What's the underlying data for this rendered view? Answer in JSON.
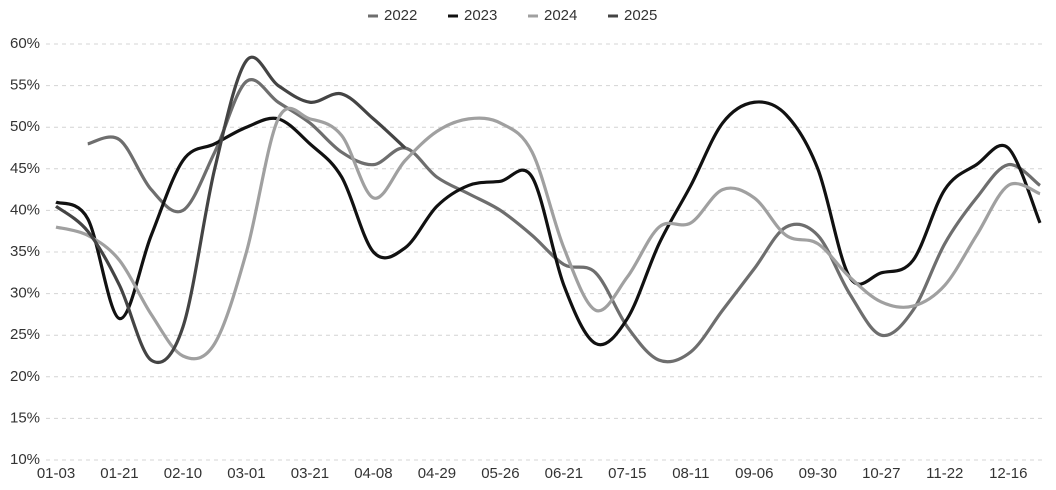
{
  "chart_data": {
    "type": "line",
    "categories": [
      "01-03",
      null,
      "01-21",
      null,
      "02-10",
      null,
      "03-01",
      null,
      "03-21",
      null,
      "04-08",
      null,
      "04-29",
      null,
      "05-26",
      null,
      "06-21",
      null,
      "07-15",
      null,
      "08-11",
      null,
      "09-06",
      null,
      "09-30",
      null,
      "10-27",
      null,
      "11-22",
      null,
      "12-16",
      null
    ],
    "series": [
      {
        "name": "2022",
        "color": "#6e6e6e",
        "values": [
          null,
          48,
          48.5,
          42.5,
          40,
          47,
          55.5,
          53,
          50.5,
          47,
          45.5,
          47.5,
          44,
          42,
          40,
          37,
          33.5,
          32.5,
          26,
          22,
          23,
          28,
          33,
          38,
          37,
          30,
          25,
          28,
          36,
          41.5,
          45.5,
          43
        ]
      },
      {
        "name": "2023",
        "color": "#111111",
        "values": [
          41,
          39,
          27,
          37,
          46,
          48,
          50,
          51,
          48,
          44,
          35,
          35.5,
          40.5,
          43,
          43.5,
          44,
          31,
          24,
          27,
          36,
          43,
          50.5,
          53,
          51.5,
          45,
          32,
          32.5,
          34,
          42.5,
          45.5,
          47.5,
          38.5
        ]
      },
      {
        "name": "2024",
        "color": "#a0a0a0",
        "values": [
          38,
          37,
          34,
          27.5,
          22.5,
          24,
          35,
          51,
          51,
          49,
          41.5,
          46,
          49.5,
          51,
          50.5,
          47,
          35.5,
          28,
          32,
          38,
          38.5,
          42.5,
          41.5,
          37,
          36,
          32,
          29,
          28.5,
          31,
          37,
          43,
          42
        ]
      },
      {
        "name": "2025",
        "color": "#444444",
        "values": [
          40.5,
          37.5,
          31,
          22,
          26,
          45,
          58,
          55,
          53,
          54,
          51,
          47.5,
          null,
          null,
          null,
          null,
          null,
          null,
          null,
          null,
          null,
          null,
          null,
          null,
          null,
          null,
          null,
          null,
          null,
          null,
          null,
          null
        ]
      }
    ],
    "ylim": [
      10,
      60
    ],
    "yticks": [
      {
        "value": 10,
        "label": "10%"
      },
      {
        "value": 15,
        "label": "15%"
      },
      {
        "value": 20,
        "label": "20%"
      },
      {
        "value": 25,
        "label": "25%"
      },
      {
        "value": 30,
        "label": "30%"
      },
      {
        "value": 35,
        "label": "35%"
      },
      {
        "value": 40,
        "label": "40%"
      },
      {
        "value": 45,
        "label": "45%"
      },
      {
        "value": 50,
        "label": "50%"
      },
      {
        "value": 55,
        "label": "55%"
      },
      {
        "value": 60,
        "label": "60%"
      }
    ],
    "grid": true,
    "legend": "top"
  }
}
